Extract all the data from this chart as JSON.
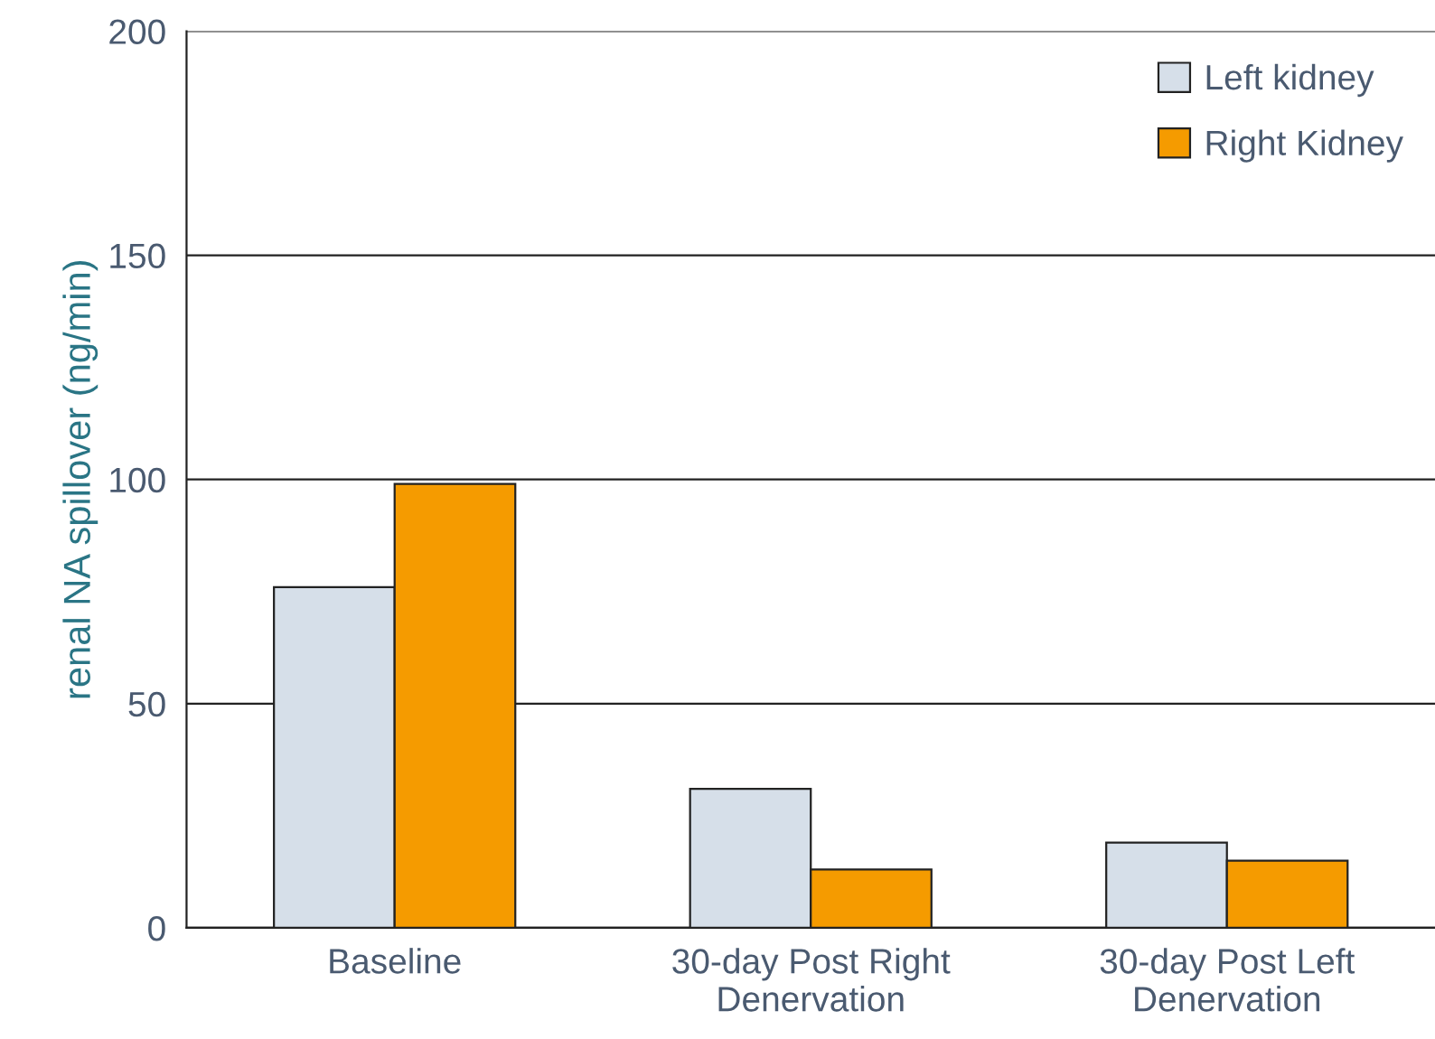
{
  "chart_data": {
    "type": "bar",
    "ylabel": "renal NA spillover (ng/min)",
    "categories": [
      "Baseline",
      "30-day Post Right\nDenervation",
      "30-day Post Left\nDenervation"
    ],
    "series": [
      {
        "name": "Left kidney",
        "color": "#d6dfe9",
        "values": [
          76,
          31,
          19
        ]
      },
      {
        "name": "Right Kidney",
        "color": "#f59b00",
        "values": [
          99,
          13,
          15
        ]
      }
    ],
    "ylim": [
      0,
      200
    ],
    "yticks": [
      0,
      50,
      100,
      150,
      200
    ],
    "grid": "y",
    "legend": "top right"
  }
}
